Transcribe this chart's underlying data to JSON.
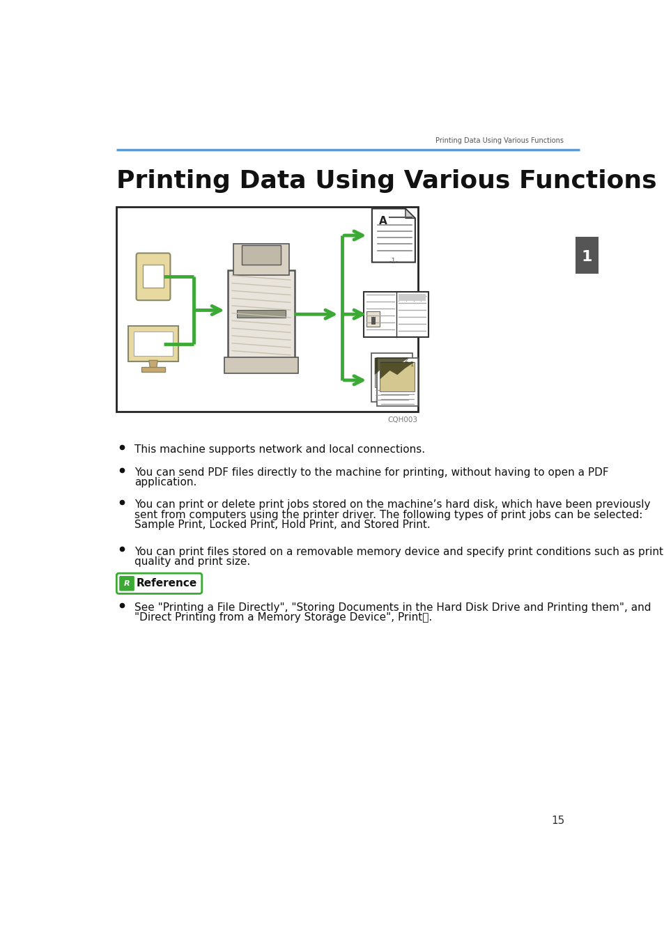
{
  "page_bg": "#ffffff",
  "header_line_color": "#5b9bd5",
  "header_text": "Printing Data Using Various Functions",
  "header_text_color": "#555555",
  "title": "Printing Data Using Various Functions",
  "title_color": "#111111",
  "arrow_color": "#3aaa35",
  "caption": "CQH003",
  "tab_number": "1",
  "tab_bg": "#555555",
  "page_number": "15",
  "bullets": [
    "This machine supports network and local connections.",
    "You can send PDF files directly to the machine for printing, without having to open a PDF\napplication.",
    "You can print or delete print jobs stored on the machine’s hard disk, which have been previously\nsent from computers using the printer driver. The following types of print jobs can be selected:\nSample Print, Locked Print, Hold Print, and Stored Print.",
    "You can print files stored on a removable memory device and specify print conditions such as print\nquality and print size."
  ],
  "ref_bullet": "See \"Printing a File Directly\", \"Storing Documents in the Hard Disk Drive and Printing them\", and\n\"Direct Printing from a Memory Storage Device\", PrintⓈ.",
  "reference_text": "Reference",
  "ref_icon_color": "#3aaa35"
}
